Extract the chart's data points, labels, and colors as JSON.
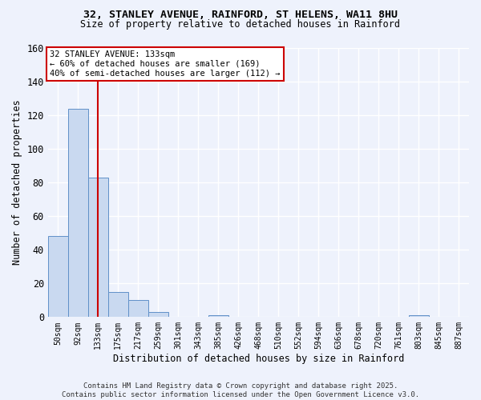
{
  "title1": "32, STANLEY AVENUE, RAINFORD, ST HELENS, WA11 8HU",
  "title2": "Size of property relative to detached houses in Rainford",
  "xlabel": "Distribution of detached houses by size in Rainford",
  "ylabel": "Number of detached properties",
  "categories": [
    "50sqm",
    "92sqm",
    "133sqm",
    "175sqm",
    "217sqm",
    "259sqm",
    "301sqm",
    "343sqm",
    "385sqm",
    "426sqm",
    "468sqm",
    "510sqm",
    "552sqm",
    "594sqm",
    "636sqm",
    "678sqm",
    "720sqm",
    "761sqm",
    "803sqm",
    "845sqm",
    "887sqm"
  ],
  "values": [
    48,
    124,
    83,
    15,
    10,
    3,
    0,
    0,
    1,
    0,
    0,
    0,
    0,
    0,
    0,
    0,
    0,
    0,
    1,
    0,
    0
  ],
  "bar_color": "#c9d9f0",
  "bar_edge_color": "#6090c8",
  "vline_x_index": 2,
  "vline_color": "#cc0000",
  "annotation_line1": "32 STANLEY AVENUE: 133sqm",
  "annotation_line2": "← 60% of detached houses are smaller (169)",
  "annotation_line3": "40% of semi-detached houses are larger (112) →",
  "annotation_box_color": "#ffffff",
  "annotation_box_edge": "#cc0000",
  "background_color": "#eef2fc",
  "grid_color": "#ffffff",
  "footer_line1": "Contains HM Land Registry data © Crown copyright and database right 2025.",
  "footer_line2": "Contains public sector information licensed under the Open Government Licence v3.0.",
  "ylim": [
    0,
    160
  ],
  "yticks": [
    0,
    20,
    40,
    60,
    80,
    100,
    120,
    140,
    160
  ]
}
